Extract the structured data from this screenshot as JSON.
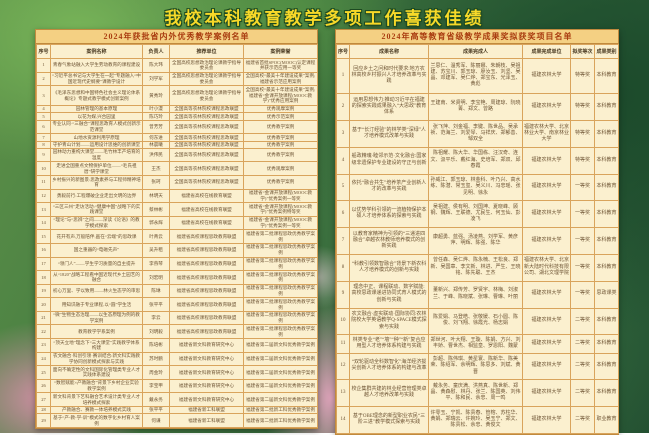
{
  "page_title": "我校本科教育教学多项工作喜获佳绩",
  "colors": {
    "title_text": "#f7d929",
    "title_outline": "#1c4a21",
    "panel_bg": "#fbf0cf",
    "panel_title_bg": "#f4d083",
    "panel_title_text": "#a93c10",
    "grid_border": "#d9a45c",
    "cell_text": "#6d5333",
    "background_green": "#30633a",
    "lotus_pink": "#e892b6"
  },
  "left_table": {
    "title": "2024年获批省内外优秀教学案例名单",
    "columns": [
      "序号",
      "案例名称",
      "负责人",
      "推荐单位",
      "案例荣誉"
    ],
    "rows": [
      [
        "1",
        "青春气象站融入大学生劳动教育的课程建设",
        "陈大玮",
        "全国高校思想政治理论课教学指导委员会",
        "福建省首批SPOC(MOOC)认定课程并获示范应用一等奖"
      ],
      [
        "2",
        "“习近平总书记与大学生在一起”专题融入“中国近现代史纲要”课教学设计",
        "刘学军",
        "全国高校思想政治理论课教学指导委员会",
        "全国高校“最美十年建设成果”案例;福建省示范应用案例"
      ],
      [
        "3",
        "《毛泽东思想和中国特色社会主义理论体系概论》专题式教学模式创新案例",
        "黄秀玲",
        "全国高校思想政治理论课教学指导委员会",
        "全国高校“最美十年建设成果”案例;福建省“金课开放课程(MOOC教学)”优秀应用案例"
      ],
      [
        "4",
        "园林管理的基本原理",
        "叶小漫",
        "全国高等农林院校课程思政联盟",
        "优秀观摩案例"
      ],
      [
        "5",
        "以花为媒,兴合园里",
        "陈巧玲",
        "全国高等农林院校课程思政联盟",
        "优秀示范案例"
      ],
      [
        "6",
        "专业认同·“三融合”课程思政育人模式创新示范课堂",
        "曾芳芳",
        "全国高等农林院校课程思政联盟",
        "优秀教学案例"
      ],
      [
        "7",
        "山地水资源利用学原理",
        "何东进",
        "全国高等农林院校课程思政联盟",
        "优秀教学案例"
      ],
      [
        "8",
        "守护青山计划——运用设计思维的创新课堂",
        "林晨曦",
        "全国高等农林院校课程思政联盟",
        "优秀教学案例"
      ],
      [
        "9",
        "园林动力重构大课堂——毛竹林丰产培育的温度",
        "洪伟民",
        "全国高等农林院校课程思政联盟",
        "优秀教学案例"
      ],
      [
        "10",
        "走进全国重点文物保护单位——“毛氏祖厝”研学课堂",
        "王杰",
        "全国高等农林院校课程思政联盟",
        "优秀观摩案例"
      ],
      [
        "11",
        "乡村振兴的新图景:思政素养与工程师精神培育",
        "张珂",
        "全国高等农林院校课程思政联盟",
        "优秀教学案例"
      ],
      [
        "12",
        "勇毅前行:工程爆破企业走出文明的边界",
        "林明天",
        "福建省高校在线教育联盟",
        "福建省“金课开放课程(MOOC教学)”优秀案例一等奖"
      ],
      [
        "13",
        "“三区三州”走访活动:“健康中国”战略下的实践课堂",
        "蔡林彬",
        "福建省高校在线教育联盟",
        "福建省“金课开放课程(MOOC教学)”优秀案例特等奖"
      ],
      [
        "14",
        "“理论”与“思辨”之间——深读《论语》的教学模式探索",
        "郭永辉",
        "福建省高校在线教育联盟",
        "福建省“金课开放课程(MOOC教学)”优秀案例一等奖"
      ],
      [
        "15",
        "花开有声,万般陪伴,画在“云端”的思政课",
        "叶菁云",
        "福建省高校课程思政教育联盟",
        "福建省第二批课程思政优秀教学案例"
      ],
      [
        "16",
        "国之重器的“电磁先声”",
        "吴升租",
        "福建省高校课程思政教育联盟",
        "福建省第二批课程思政优秀教学案例"
      ],
      [
        "17",
        "“领门人”——学生学习质量的自主提升",
        "李燕琴",
        "福建省高校课程思政教育联盟",
        "福建省第二批课程思政优秀教学案例"
      ],
      [
        "18",
        "从“1820”战略工程看中国近现代乡土园艺的融合",
        "刘宏明",
        "福建省高校课程思政教育联盟",
        "福建省第二批课程思政优秀教学案例"
      ],
      [
        "19",
        "初心万里、学以致用——林火生态学的审思",
        "陈琳",
        "福建省高校课程思政教育联盟",
        "福建省第二批课程思政优秀教学案例"
      ],
      [
        "20",
        "用知识融于专业课程,以“圆”学生活",
        "张平平",
        "福建省高校课程思政教育联盟",
        "福建省第二批课程思政优秀教学案例"
      ],
      [
        "21",
        "“微”生物生态治理——以生态原理为例的教学案例",
        "李云",
        "福建省高校课程思政教育联盟",
        "福建省第二批课程思政优秀教学案例"
      ],
      [
        "22",
        "教育教学学系案例",
        "刘明毅",
        "福建省高校课程思政教育联盟",
        "福建省第二批课程思政优秀教学案例"
      ],
      [
        "23",
        "“顶天立地”理念下“三大课堂”实践教学体系构建",
        "陈培彬",
        "福建省新文科教育研究中心",
        "福建省第二届新文科优秀教学案例"
      ],
      [
        "24",
        "农文融合·科创引领·赛训结合:新文科实践教学协同创新模式探索与实践",
        "苏时鹏",
        "福建省新文科教育研究中心",
        "福建省第二届新文科优秀教学案例"
      ],
      [
        "25",
        "面向不确定性的文科国际化管理类专业人才实践体系建设",
        "周金玲",
        "福建省新文科教育研究中心",
        "福建省第二届新文科优秀教学案例"
      ],
      [
        "26",
        "“数智赋能×产教融合”背景下乡村企业实验教学案例",
        "李宝甲",
        "福建省新文科教育研究中心",
        "福建省第二届新文科优秀教学案例"
      ],
      [
        "27",
        "新文科背景下艺科融合艺术设计类专业人才培养模式探索",
        "戴永务",
        "福建省新文科教育研究中心",
        "福建省第二届新文科优秀教学案例"
      ],
      [
        "28",
        "产教融合、赛教一体培养模式实践",
        "张平平",
        "福建省新工科联盟",
        "福建省第二批新工科优秀教学案例"
      ],
      [
        "29",
        "基于“产-教-学-训”模式的数字化乡村育人案例",
        "何谦",
        "福建省新工科联盟",
        "福建省第二批新工科优秀教学案例"
      ]
    ]
  },
  "right_table": {
    "title": "2024年高等教育省级教学成果奖拟获奖项目名单",
    "columns": [
      "序号",
      "成果名称",
      "成果完成人",
      "成果完成单位",
      "拟奖等次",
      "成果类别"
    ],
    "rows": [
      [
        "1",
        "回应乡土之问和时代要求:地方农林高校乡村振兴人才培养改革与实践",
        "兰思仁、温秀军、陈丽娜、朱朝枝、吴祖建、苏宝川、郭玉琼、廖汝玉、刘坚、吴晶、邓建军、吴仁烨、郑宝东、光泽玉、黄彪",
        "福建农林大学",
        "特等奖",
        "本科教育"
      ],
      [
        "2",
        "运用思想伟力:推动习近平在福建的探索实践成果融入“大思政”教育体系",
        "王建南、米贤明、李宝艳、周建琼、阮晓菁、郑文、曾路",
        "福建农林大学",
        "特等奖",
        "本科教育"
      ],
      [
        "3",
        "基于“长汀经验”的林学类“深绿”人才培养模式改革与实践",
        "张飞萍、刘金福、李键、陈世品、吴承祯、范海兰、刘爱琴、马祥庆、郑郁善、邹双全",
        "福建农林大学、北京林业大学、南京林业大学",
        "特等奖",
        "本科教育"
      ],
      [
        "4",
        "船政精魂·睦邻示范·文化融合:国家级非遗保护专业建设的守正与创新",
        "陈祖耀、陈大华、华国栋、汪汉奇、连文、汲平乐、戴红海、史培军、郑双、邱春霞",
        "福建农林大学",
        "特等奖",
        "本科教育"
      ],
      [
        "5",
        "依托“融合共生”培养茶产业创新人才的改革与实践",
        "孙威江、郭玉琼、林金科、叶乃兴、高水练、陈潜、常玉玺、吴义川、冯忠瑶、张见明、徐永",
        "福建农林大学",
        "一等奖",
        "本科教育"
      ],
      [
        "6",
        "以优势学科引领的一流植物保护本硕人才培养体系的探索与实践",
        "吴祖建、侯有明、刘国坤、夏晓峰、顾钢、魏辉、王联德、尤民生、何玉仙、彭凌飞",
        "福建农林大学",
        "一等奖",
        "本科教育"
      ],
      [
        "7",
        "以教育家精神为引领的“三递进四融合”卓越农林教师培养模式的创新实践",
        "康超勇、蓝强、汤凌燕、刘学军、黄彦萍、明辉、陈强、陈华",
        "福建农林大学",
        "一等奖",
        "本科教育"
      ],
      [
        "8",
        "“科教引领数智融合”背景下新农科人才培养模式的创新与实践",
        "曾任森、吴仁烨、陈永楠、王松良、郑新、吴国章、李文新、林进、严生、王晓铭、陈先聪、王杰",
        "福建农林大学、北京新大陆时代科技有限公司、湖北文理学院",
        "一等奖",
        "本科教育"
      ],
      [
        "9",
        "理念中正、课程联动、数字赋能:高校思政课递进协同式育人模式的创新与实践",
        "董新兴、郑传芳、罗贤宇、林梅、刘淑兰、于峰、陈晓斌、张琳、曹琳、叶丽",
        "福建农林大学",
        "一等奖",
        "思政课类"
      ],
      [
        "10",
        "农文融合·虚实联动·国际协同:农林院校大学英语教学Q-SPACE模式探索与实践",
        "陈爱娟、马登皓、张敬媛、石小圆、陈俊、刘飞翔、徐霞光、杨志娟",
        "福建农林大学",
        "二等奖",
        "本科教育"
      ],
      [
        "11",
        "林类专业“老”“墙”“种”“新”复合应用型人才培养体系构建与实践",
        "郑世河、叶大翔、王璇、陈娟、方兴、刘丰娇、曹世杰、相监皇、罗恩阳、魏蒙",
        "福建农林大学",
        "二等奖",
        "本科教育"
      ],
      [
        "12",
        "“双轮驱动全科数智化”海洋经济拔尖创新人才培养体系的构建与改革",
        "彭超、陈伟琪、黄星寰、陈新华、陈美荣、陈绍军、余明辉、陈思多、刘斌、黄晋",
        "福建农林大学",
        "二等奖",
        "本科教育"
      ],
      [
        "13",
        "校企集群共建的林业经营管理类卓越人才培养改革与实践",
        "戴永务、童庆满、洪燕真、陈世新、郑晶、黄森慰、林丹、张兰、陈国英、刘伟平、陈和民、余忠、周一鸣",
        "福建农林大学",
        "二等奖",
        "本科教育"
      ],
      [
        "14",
        "基于OBE理念的新型职业农民“三阶三进”教学模式探索与实践",
        "许零玉、宁凯、陈贵春、管榕、苏柱华、黄娟、郑瑞云、许婉玲、吴玉宁、郑文、陈贵松、余忠、黄俊文",
        "福建农林大学",
        "二等奖",
        "职业教育"
      ]
    ]
  }
}
